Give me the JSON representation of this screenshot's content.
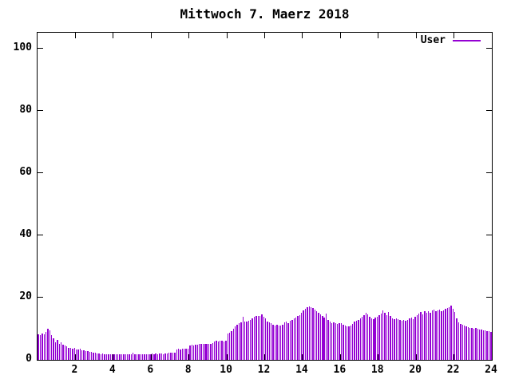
{
  "title": "Mittwoch 7. Maerz 2018",
  "legend": {
    "label": "User",
    "color": "#9400d3"
  },
  "axes": {
    "x_tick_labels": [
      "2",
      "4",
      "6",
      "8",
      "10",
      "12",
      "14",
      "16",
      "18",
      "20",
      "22",
      "24"
    ],
    "y_tick_labels": [
      "0",
      "20",
      "40",
      "60",
      "80",
      "100"
    ]
  },
  "chart_data": {
    "type": "bar",
    "title": "Mittwoch 7. Maerz 2018",
    "xlabel": "",
    "ylabel": "",
    "xlim": [
      0,
      24
    ],
    "ylim": [
      0,
      105
    ],
    "x_ticks": [
      2,
      4,
      6,
      8,
      10,
      12,
      14,
      16,
      18,
      20,
      22,
      24
    ],
    "y_ticks": [
      0,
      20,
      40,
      60,
      80,
      100
    ],
    "grid": false,
    "legend_position": "top-right",
    "bar_style": "impulses",
    "x_unit": "hour of day",
    "sample_interval_hours": 0.1,
    "series": [
      {
        "name": "User",
        "color": "#9400d3",
        "values": [
          8.2,
          8.0,
          8.4,
          8.2,
          8.9,
          10.1,
          9.5,
          8.0,
          6.9,
          5.6,
          6.3,
          5.2,
          5.6,
          4.9,
          4.6,
          4.3,
          3.9,
          3.9,
          3.5,
          3.8,
          3.4,
          3.3,
          3.5,
          3.2,
          3.0,
          2.8,
          2.8,
          2.6,
          2.6,
          2.4,
          2.2,
          2.0,
          2.0,
          1.9,
          2.0,
          1.9,
          1.8,
          1.9,
          1.8,
          1.9,
          1.8,
          1.8,
          1.9,
          1.8,
          1.8,
          1.9,
          1.8,
          1.8,
          1.9,
          1.8,
          2.2,
          1.9,
          1.8,
          1.9,
          1.8,
          1.9,
          1.8,
          1.9,
          1.8,
          1.9,
          2.0,
          1.9,
          2.0,
          1.9,
          2.0,
          2.0,
          1.9,
          2.0,
          2.1,
          2.2,
          2.2,
          2.2,
          2.3,
          3.3,
          3.5,
          3.4,
          3.5,
          3.6,
          3.5,
          3.6,
          4.6,
          4.8,
          4.7,
          4.9,
          4.8,
          5.0,
          5.1,
          5.0,
          5.2,
          5.1,
          5.2,
          5.1,
          5.3,
          5.9,
          6.1,
          6.0,
          6.2,
          6.1,
          6.0,
          6.2,
          8.4,
          8.7,
          9.3,
          10.0,
          10.7,
          11.2,
          11.7,
          12.1,
          13.9,
          12.2,
          12.4,
          12.6,
          12.9,
          13.2,
          13.9,
          14.1,
          14.0,
          14.2,
          14.7,
          13.8,
          13.3,
          12.4,
          12.1,
          11.8,
          11.2,
          11.0,
          11.2,
          10.9,
          11.1,
          11.4,
          12.0,
          12.4,
          11.8,
          12.6,
          12.9,
          13.3,
          13.6,
          14.0,
          14.4,
          15.2,
          15.8,
          16.3,
          16.8,
          17.1,
          16.9,
          16.6,
          16.2,
          15.5,
          15.0,
          14.6,
          14.2,
          13.6,
          14.8,
          12.9,
          12.2,
          11.9,
          12.1,
          11.8,
          11.6,
          11.9,
          11.7,
          11.4,
          10.9,
          10.7,
          10.8,
          11.0,
          11.6,
          12.2,
          12.6,
          12.9,
          13.4,
          13.9,
          14.3,
          15.2,
          14.5,
          13.9,
          13.3,
          13.0,
          13.5,
          13.9,
          14.3,
          14.8,
          15.9,
          15.1,
          14.4,
          15.3,
          14.0,
          13.4,
          13.1,
          13.3,
          13.0,
          12.7,
          12.5,
          12.8,
          12.6,
          12.9,
          13.3,
          13.6,
          13.1,
          13.8,
          14.3,
          14.9,
          15.3,
          14.7,
          15.5,
          15.1,
          15.6,
          15.2,
          15.8,
          16.1,
          15.6,
          15.9,
          16.2,
          15.7,
          16.0,
          16.3,
          16.6,
          16.9,
          17.5,
          16.4,
          15.4,
          13.3,
          12.0,
          11.5,
          11.2,
          11.0,
          10.8,
          10.5,
          10.3,
          10.2,
          10.0,
          10.3,
          10.0,
          9.8,
          9.8,
          9.5,
          9.5,
          9.3,
          9.2,
          9.0
        ]
      }
    ]
  }
}
